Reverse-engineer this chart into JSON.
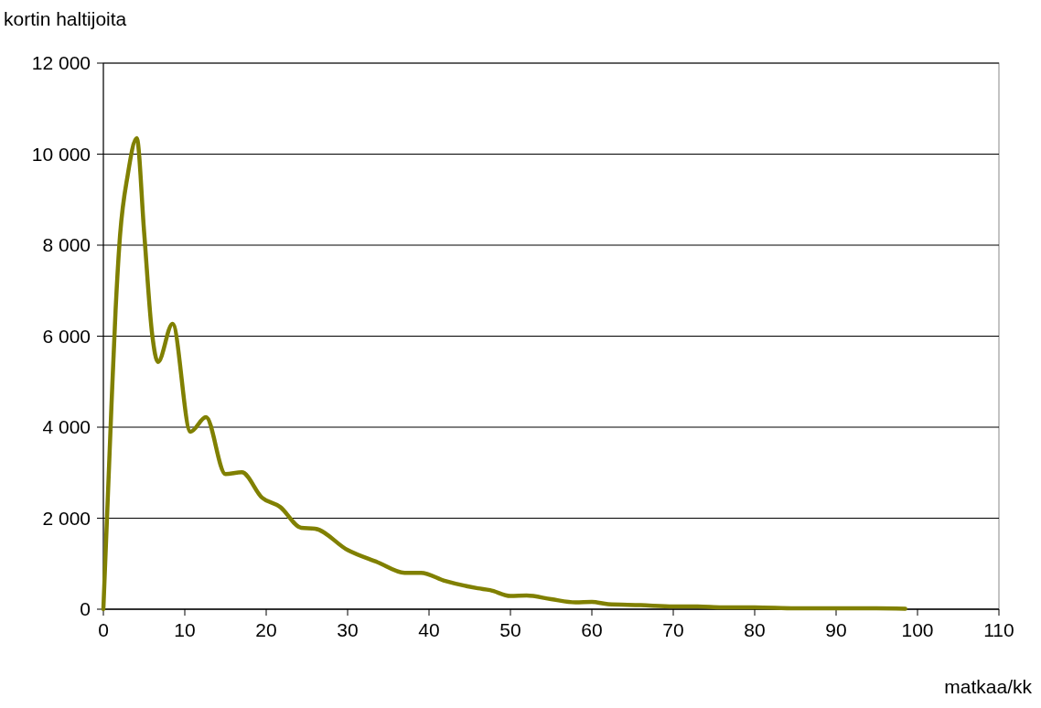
{
  "chart_data": {
    "type": "line",
    "xlabel": "matkaa/kk",
    "ylabel": "kortin haltijoita",
    "xlim": [
      0,
      110
    ],
    "xticks": [
      0,
      10,
      20,
      30,
      40,
      50,
      60,
      70,
      80,
      90,
      100,
      110
    ],
    "ylim": [
      0,
      12000
    ],
    "yticks": [
      {
        "value": 0,
        "label": "0"
      },
      {
        "value": 2000,
        "label": "2 000"
      },
      {
        "value": 4000,
        "label": "4 000"
      },
      {
        "value": 6000,
        "label": "6 000"
      },
      {
        "value": 8000,
        "label": "8 000"
      },
      {
        "value": 10000,
        "label": "10 000"
      },
      {
        "value": 12000,
        "label": "12 000"
      }
    ],
    "grid": "y",
    "marker": "none",
    "line_style": "solid",
    "series": [
      {
        "color": "#808000",
        "x": [
          0,
          1,
          1.5,
          2,
          3,
          4.1,
          5,
          6,
          6.7,
          8.5,
          10.7,
          12.6,
          15,
          17,
          19.5,
          21.7,
          24.3,
          26,
          30,
          33.7,
          37,
          39,
          42,
          46,
          47.5,
          50,
          52,
          55,
          58,
          60,
          62,
          66,
          70,
          73,
          76,
          80,
          85,
          90,
          95,
          98.5
        ],
        "values": [
          0,
          4500,
          6570,
          8100,
          9550,
          10350,
          8300,
          6030,
          5430,
          6270,
          3900,
          4220,
          2970,
          3010,
          2450,
          2250,
          1790,
          1770,
          1300,
          1030,
          800,
          800,
          620,
          460,
          420,
          290,
          300,
          220,
          150,
          160,
          110,
          90,
          60,
          60,
          40,
          40,
          20,
          20,
          20,
          10
        ]
      }
    ]
  }
}
